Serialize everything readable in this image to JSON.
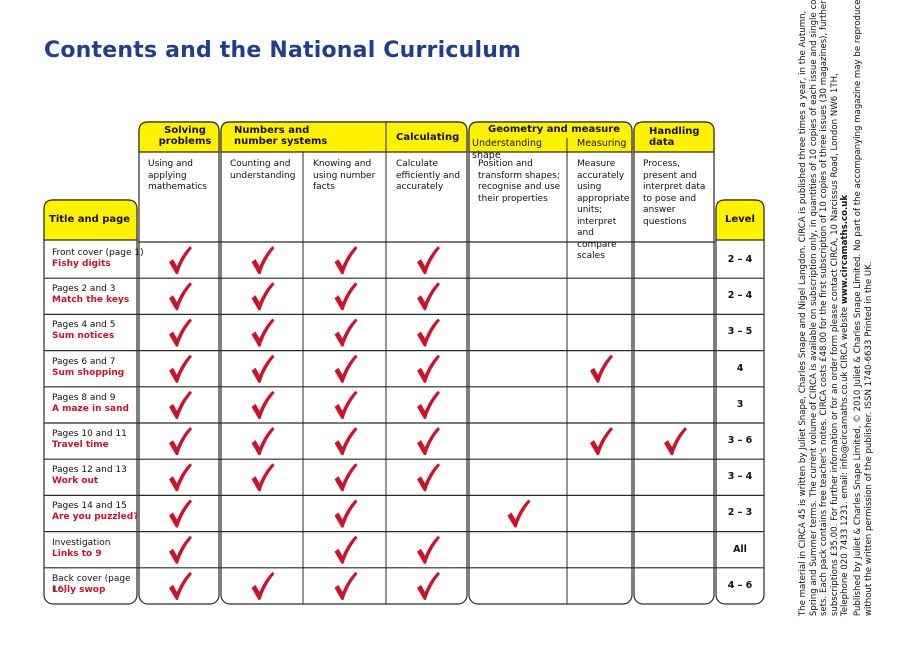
{
  "title": "Contents and the National Curriculum",
  "table": {
    "groups": [
      {
        "label": "Solving problems"
      },
      {
        "label": "Numbers and number systems"
      },
      {
        "label": "Calculating"
      },
      {
        "label": "Geometry and measure"
      },
      {
        "label": "Handling data"
      }
    ],
    "subheads": [
      "Understanding shape",
      "Measuring"
    ],
    "columns": [
      "Using and applying mathematics",
      "Counting and understanding",
      "Knowing and using number facts",
      "Calculate efficiently and accurately",
      "Position and transform shapes; recognise and use their properties",
      "Measure accurately using appropriate units; interpret and compare scales",
      "Process, present and interpret data to pose and answer questions"
    ],
    "title_header": "Title and page",
    "level_header": "Level",
    "rows": [
      {
        "page": "Front cover (page 1)",
        "name": "Fishy digits",
        "ticks": [
          true,
          true,
          true,
          true,
          false,
          false,
          false
        ],
        "level": "2 – 4"
      },
      {
        "page": "Pages 2 and 3",
        "name": "Match the keys",
        "ticks": [
          true,
          true,
          true,
          true,
          false,
          false,
          false
        ],
        "level": "2 – 4"
      },
      {
        "page": "Pages 4 and 5",
        "name": "Sum notices",
        "ticks": [
          true,
          true,
          true,
          true,
          false,
          false,
          false
        ],
        "level": "3 – 5"
      },
      {
        "page": "Pages 6 and 7",
        "name": "Sum shopping",
        "ticks": [
          true,
          true,
          true,
          true,
          false,
          true,
          false
        ],
        "level": "4"
      },
      {
        "page": "Pages 8 and 9",
        "name": "A maze in sand",
        "ticks": [
          true,
          true,
          true,
          true,
          false,
          false,
          false
        ],
        "level": "3"
      },
      {
        "page": "Pages 10 and 11",
        "name": "Travel time",
        "ticks": [
          true,
          true,
          true,
          true,
          false,
          true,
          true
        ],
        "level": "3 – 6"
      },
      {
        "page": "Pages 12 and 13",
        "name": "Work out",
        "ticks": [
          true,
          true,
          true,
          true,
          false,
          false,
          false
        ],
        "level": "3 – 4"
      },
      {
        "page": "Pages 14 and 15",
        "name": "Are you puzzled?",
        "ticks": [
          true,
          false,
          true,
          false,
          true,
          false,
          false
        ],
        "level": "2 – 3"
      },
      {
        "page": "Investigation",
        "name": "Links to 9",
        "ticks": [
          true,
          false,
          true,
          true,
          false,
          false,
          false
        ],
        "level": "All"
      },
      {
        "page": "Back cover (page 16)",
        "name": "Lolly swop",
        "ticks": [
          true,
          true,
          true,
          true,
          false,
          false,
          false
        ],
        "level": "4 – 6"
      }
    ]
  },
  "side_text": {
    "paragraph_1": [
      "The material in CIRCA 45 is written by Juliet Snape, Charles Snape and Nigel Langdon. CIRCA is published three times a year, in the Autumn,",
      "Spring and Summer terms. The current volume of CIRCA is available on subscription only, in quantities of 10 copies of each issue and single copy",
      "sets. Each pack contains free teacher's notes. CIRCA costs £48.00 for the first subscription of 10 copies of three issues (30 magazines), further",
      "subscriptions £35.00. For further information or for an order form please contact CIRCA, 10 Narcissus Road, London NW6 1TH,"
    ],
    "contact_line": "Telephone 020 7433 1231. email: info@circamaths.co.uk CIRCA website",
    "website": "www.circamaths.co.uk",
    "paragraph_2": [
      "Published by Juliet & Charles Snape Limited, © 2010 Juliet & Charles Snape Limited. No part of the accompanying magazine may be reproduced",
      "without the written permission of the publisher. ISSN 1740-6633  Printed in the UK."
    ]
  }
}
